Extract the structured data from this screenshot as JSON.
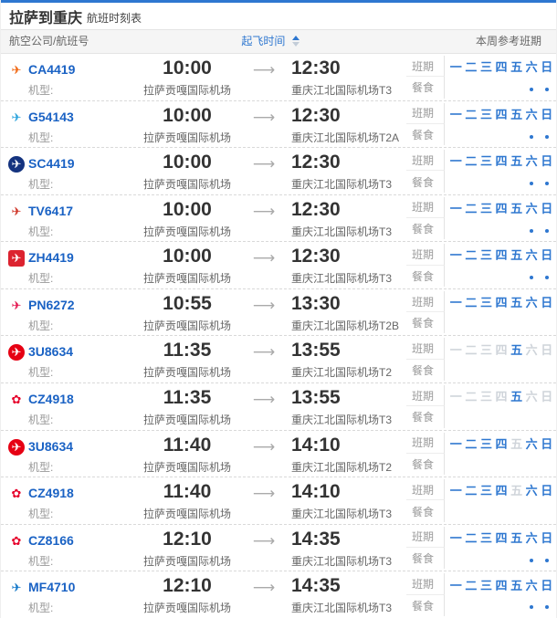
{
  "page": {
    "title": "拉萨到重庆",
    "subtitle": "航班时刻表"
  },
  "table_header": {
    "col_airline": "航空公司/航班号",
    "col_departure": "起飞时间",
    "sort_state": "asc",
    "col_week": "本周参考班期"
  },
  "labels": {
    "schedule": "班期",
    "meal": "餐食",
    "aircraft": "机型:",
    "arrow": "⟶"
  },
  "colors": {
    "accent_blue": "#2e77d0",
    "link_blue": "#1a62c4",
    "day_off_gray": "#cfd4da",
    "time_text": "#333333"
  },
  "rows": [
    {
      "flight_no": "CA4419",
      "icon": {
        "name": "air-china-logo-icon",
        "style": "color:#f0650f",
        "glyph": "✈"
      },
      "dep_time": "10:00",
      "arr_time": "12:30",
      "dep_airport": "拉萨贡嘎国际机场",
      "arr_airport": "重庆江北国际机场T3",
      "days": [
        {
          "label": "一",
          "cls": "day on"
        },
        {
          "label": "二",
          "cls": "day on"
        },
        {
          "label": "三",
          "cls": "day on"
        },
        {
          "label": "四",
          "cls": "day on"
        },
        {
          "label": "五",
          "cls": "day on"
        },
        {
          "label": "六",
          "cls": "day on"
        },
        {
          "label": "日",
          "cls": "day on"
        }
      ],
      "dots_cls": "dotline show"
    },
    {
      "flight_no": "G54143",
      "icon": {
        "name": "china-express-logo-icon",
        "style": "color:#2aa3dc",
        "glyph": "✈"
      },
      "dep_time": "10:00",
      "arr_time": "12:30",
      "dep_airport": "拉萨贡嘎国际机场",
      "arr_airport": "重庆江北国际机场T2A",
      "days": [
        {
          "label": "一",
          "cls": "day on"
        },
        {
          "label": "二",
          "cls": "day on"
        },
        {
          "label": "三",
          "cls": "day on"
        },
        {
          "label": "四",
          "cls": "day on"
        },
        {
          "label": "五",
          "cls": "day on"
        },
        {
          "label": "六",
          "cls": "day on"
        },
        {
          "label": "日",
          "cls": "day on"
        }
      ],
      "dots_cls": "dotline show"
    },
    {
      "flight_no": "SC4419",
      "icon": {
        "name": "shandong-airlines-logo-icon",
        "style": "background:#14337f;color:#fff;border-radius:50%",
        "glyph": "✈"
      },
      "dep_time": "10:00",
      "arr_time": "12:30",
      "dep_airport": "拉萨贡嘎国际机场",
      "arr_airport": "重庆江北国际机场T3",
      "days": [
        {
          "label": "一",
          "cls": "day on"
        },
        {
          "label": "二",
          "cls": "day on"
        },
        {
          "label": "三",
          "cls": "day on"
        },
        {
          "label": "四",
          "cls": "day on"
        },
        {
          "label": "五",
          "cls": "day on"
        },
        {
          "label": "六",
          "cls": "day on"
        },
        {
          "label": "日",
          "cls": "day on"
        }
      ],
      "dots_cls": "dotline show"
    },
    {
      "flight_no": "TV6417",
      "icon": {
        "name": "tibet-airlines-logo-icon",
        "style": "color:#cf3527",
        "glyph": "✈"
      },
      "dep_time": "10:00",
      "arr_time": "12:30",
      "dep_airport": "拉萨贡嘎国际机场",
      "arr_airport": "重庆江北国际机场T3",
      "days": [
        {
          "label": "一",
          "cls": "day on"
        },
        {
          "label": "二",
          "cls": "day on"
        },
        {
          "label": "三",
          "cls": "day on"
        },
        {
          "label": "四",
          "cls": "day on"
        },
        {
          "label": "五",
          "cls": "day on"
        },
        {
          "label": "六",
          "cls": "day on"
        },
        {
          "label": "日",
          "cls": "day on"
        }
      ],
      "dots_cls": "dotline show"
    },
    {
      "flight_no": "ZH4419",
      "icon": {
        "name": "shenzhen-airlines-logo-icon",
        "style": "background:#dc2330;color:#fff;border-radius:3px",
        "glyph": "✈"
      },
      "dep_time": "10:00",
      "arr_time": "12:30",
      "dep_airport": "拉萨贡嘎国际机场",
      "arr_airport": "重庆江北国际机场T3",
      "days": [
        {
          "label": "一",
          "cls": "day on"
        },
        {
          "label": "二",
          "cls": "day on"
        },
        {
          "label": "三",
          "cls": "day on"
        },
        {
          "label": "四",
          "cls": "day on"
        },
        {
          "label": "五",
          "cls": "day on"
        },
        {
          "label": "六",
          "cls": "day on"
        },
        {
          "label": "日",
          "cls": "day on"
        }
      ],
      "dots_cls": "dotline show"
    },
    {
      "flight_no": "PN6272",
      "icon": {
        "name": "west-air-logo-icon",
        "style": "color:#e3154e",
        "glyph": "✈"
      },
      "dep_time": "10:55",
      "arr_time": "13:30",
      "dep_airport": "拉萨贡嘎国际机场",
      "arr_airport": "重庆江北国际机场T2B",
      "days": [
        {
          "label": "一",
          "cls": "day on"
        },
        {
          "label": "二",
          "cls": "day on"
        },
        {
          "label": "三",
          "cls": "day on"
        },
        {
          "label": "四",
          "cls": "day on"
        },
        {
          "label": "五",
          "cls": "day on"
        },
        {
          "label": "六",
          "cls": "day on"
        },
        {
          "label": "日",
          "cls": "day on"
        }
      ],
      "dots_cls": "dotline"
    },
    {
      "flight_no": "3U8634",
      "icon": {
        "name": "sichuan-airlines-logo-icon",
        "style": "background:#e60013;color:#fff;border-radius:50%",
        "glyph": "✈"
      },
      "dep_time": "11:35",
      "arr_time": "13:55",
      "dep_airport": "拉萨贡嘎国际机场",
      "arr_airport": "重庆江北国际机场T2",
      "days": [
        {
          "label": "一",
          "cls": "day off"
        },
        {
          "label": "二",
          "cls": "day off"
        },
        {
          "label": "三",
          "cls": "day off"
        },
        {
          "label": "四",
          "cls": "day off"
        },
        {
          "label": "五",
          "cls": "day on"
        },
        {
          "label": "六",
          "cls": "day off"
        },
        {
          "label": "日",
          "cls": "day off"
        }
      ],
      "dots_cls": "dotline"
    },
    {
      "flight_no": "CZ4918",
      "icon": {
        "name": "china-southern-logo-icon",
        "style": "color:#e6002a",
        "glyph": "✿"
      },
      "dep_time": "11:35",
      "arr_time": "13:55",
      "dep_airport": "拉萨贡嘎国际机场",
      "arr_airport": "重庆江北国际机场T3",
      "days": [
        {
          "label": "一",
          "cls": "day off"
        },
        {
          "label": "二",
          "cls": "day off"
        },
        {
          "label": "三",
          "cls": "day off"
        },
        {
          "label": "四",
          "cls": "day off"
        },
        {
          "label": "五",
          "cls": "day on"
        },
        {
          "label": "六",
          "cls": "day off"
        },
        {
          "label": "日",
          "cls": "day off"
        }
      ],
      "dots_cls": "dotline"
    },
    {
      "flight_no": "3U8634",
      "icon": {
        "name": "sichuan-airlines-logo-icon",
        "style": "background:#e60013;color:#fff;border-radius:50%",
        "glyph": "✈"
      },
      "dep_time": "11:40",
      "arr_time": "14:10",
      "dep_airport": "拉萨贡嘎国际机场",
      "arr_airport": "重庆江北国际机场T2",
      "days": [
        {
          "label": "一",
          "cls": "day on"
        },
        {
          "label": "二",
          "cls": "day on"
        },
        {
          "label": "三",
          "cls": "day on"
        },
        {
          "label": "四",
          "cls": "day on"
        },
        {
          "label": "五",
          "cls": "day off"
        },
        {
          "label": "六",
          "cls": "day on"
        },
        {
          "label": "日",
          "cls": "day on"
        }
      ],
      "dots_cls": "dotline"
    },
    {
      "flight_no": "CZ4918",
      "icon": {
        "name": "china-southern-logo-icon",
        "style": "color:#e6002a",
        "glyph": "✿"
      },
      "dep_time": "11:40",
      "arr_time": "14:10",
      "dep_airport": "拉萨贡嘎国际机场",
      "arr_airport": "重庆江北国际机场T3",
      "days": [
        {
          "label": "一",
          "cls": "day on"
        },
        {
          "label": "二",
          "cls": "day on"
        },
        {
          "label": "三",
          "cls": "day on"
        },
        {
          "label": "四",
          "cls": "day on"
        },
        {
          "label": "五",
          "cls": "day off"
        },
        {
          "label": "六",
          "cls": "day on"
        },
        {
          "label": "日",
          "cls": "day on"
        }
      ],
      "dots_cls": "dotline"
    },
    {
      "flight_no": "CZ8166",
      "icon": {
        "name": "china-southern-logo-icon",
        "style": "color:#e6002a",
        "glyph": "✿"
      },
      "dep_time": "12:10",
      "arr_time": "14:35",
      "dep_airport": "拉萨贡嘎国际机场",
      "arr_airport": "重庆江北国际机场T3",
      "days": [
        {
          "label": "一",
          "cls": "day on"
        },
        {
          "label": "二",
          "cls": "day on"
        },
        {
          "label": "三",
          "cls": "day on"
        },
        {
          "label": "四",
          "cls": "day on"
        },
        {
          "label": "五",
          "cls": "day on"
        },
        {
          "label": "六",
          "cls": "day on"
        },
        {
          "label": "日",
          "cls": "day on"
        }
      ],
      "dots_cls": "dotline show"
    },
    {
      "flight_no": "MF4710",
      "icon": {
        "name": "xiamen-air-logo-icon",
        "style": "color:#1076c8",
        "glyph": "✈"
      },
      "dep_time": "12:10",
      "arr_time": "14:35",
      "dep_airport": "拉萨贡嘎国际机场",
      "arr_airport": "重庆江北国际机场T3",
      "days": [
        {
          "label": "一",
          "cls": "day on"
        },
        {
          "label": "二",
          "cls": "day on"
        },
        {
          "label": "三",
          "cls": "day on"
        },
        {
          "label": "四",
          "cls": "day on"
        },
        {
          "label": "五",
          "cls": "day on"
        },
        {
          "label": "六",
          "cls": "day on"
        },
        {
          "label": "日",
          "cls": "day on"
        }
      ],
      "dots_cls": "dotline show"
    }
  ]
}
